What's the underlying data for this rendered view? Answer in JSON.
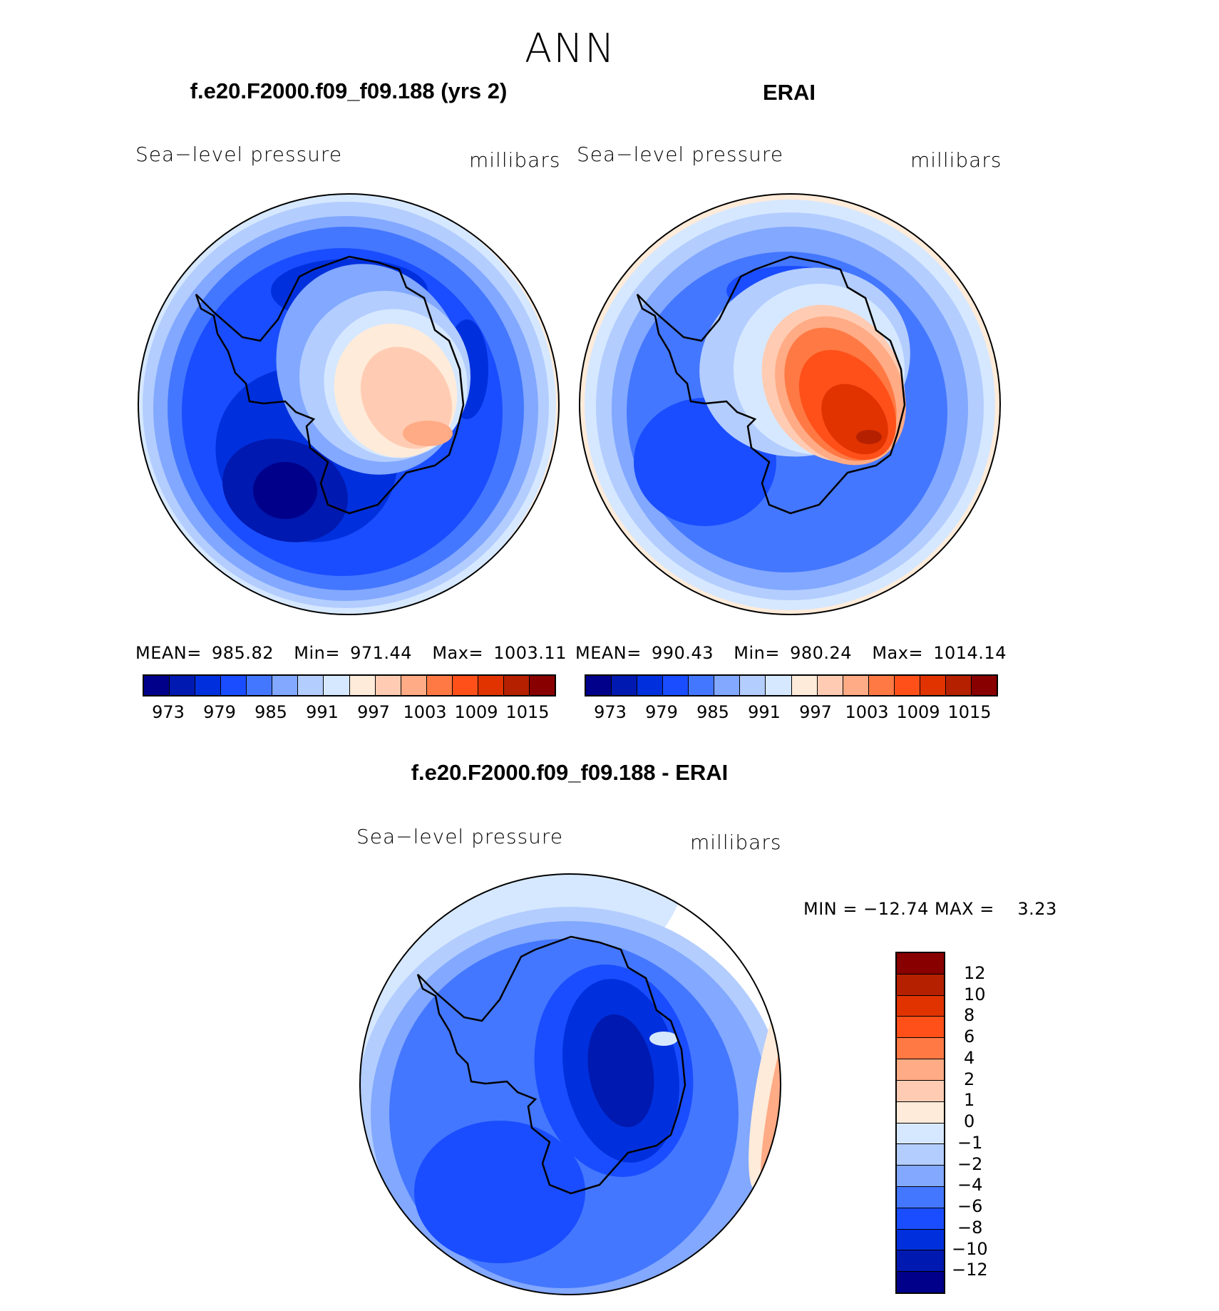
{
  "title": "ANN",
  "chart_data": [
    {
      "type": "heatmap",
      "title": "f.e20.F2000.f09_f09.188 (yrs 2)",
      "left_label": "Sea−level pressure",
      "right_label": "millibars",
      "stats": {
        "mean_label": "MEAN=",
        "mean": "985.82",
        "min_label": "Min=",
        "min": "971.44",
        "max_label": "Max=",
        "max": "1003.11"
      },
      "levels": [
        973,
        976,
        979,
        982,
        985,
        988,
        991,
        994,
        997,
        1000,
        1003,
        1006,
        1009,
        1012,
        1015
      ],
      "tick_labels": [
        "973",
        "979",
        "985",
        "991",
        "997",
        "1003",
        "1009",
        "1015"
      ],
      "projection": "south polar stereographic"
    },
    {
      "type": "heatmap",
      "title": "ERAI",
      "left_label": "Sea−level pressure",
      "right_label": "millibars",
      "stats": {
        "mean_label": "MEAN=",
        "mean": "990.43",
        "min_label": "Min=",
        "min": "980.24",
        "max_label": "Max=",
        "max": "1014.14"
      },
      "levels": [
        973,
        976,
        979,
        982,
        985,
        988,
        991,
        994,
        997,
        1000,
        1003,
        1006,
        1009,
        1012,
        1015
      ],
      "tick_labels": [
        "973",
        "979",
        "985",
        "991",
        "997",
        "1003",
        "1009",
        "1015"
      ],
      "projection": "south polar stereographic"
    },
    {
      "type": "heatmap",
      "title": "f.e20.F2000.f09_f09.188 - ERAI",
      "left_label": "Sea−level pressure",
      "right_label": "millibars",
      "stats_text": "MIN = −12.74 MAX =    3.23",
      "levels": [
        -12,
        -10,
        -8,
        -6,
        -4,
        -2,
        -1,
        0,
        1,
        2,
        4,
        6,
        8,
        10,
        12
      ],
      "tick_labels": [
        "12",
        "10",
        "8",
        "6",
        "4",
        "2",
        "1",
        "0",
        "−1",
        "−2",
        "−4",
        "−6",
        "−8",
        "−10",
        "−12"
      ],
      "projection": "south polar stereographic"
    }
  ],
  "colors": [
    "#00008a",
    "#0019b0",
    "#0030dd",
    "#1a4dff",
    "#4477ff",
    "#82a8ff",
    "#b3cdff",
    "#d6e8ff",
    "#ffebd9",
    "#ffccb3",
    "#ffab85",
    "#ff7944",
    "#ff5019",
    "#e03300",
    "#b52000",
    "#880000"
  ]
}
